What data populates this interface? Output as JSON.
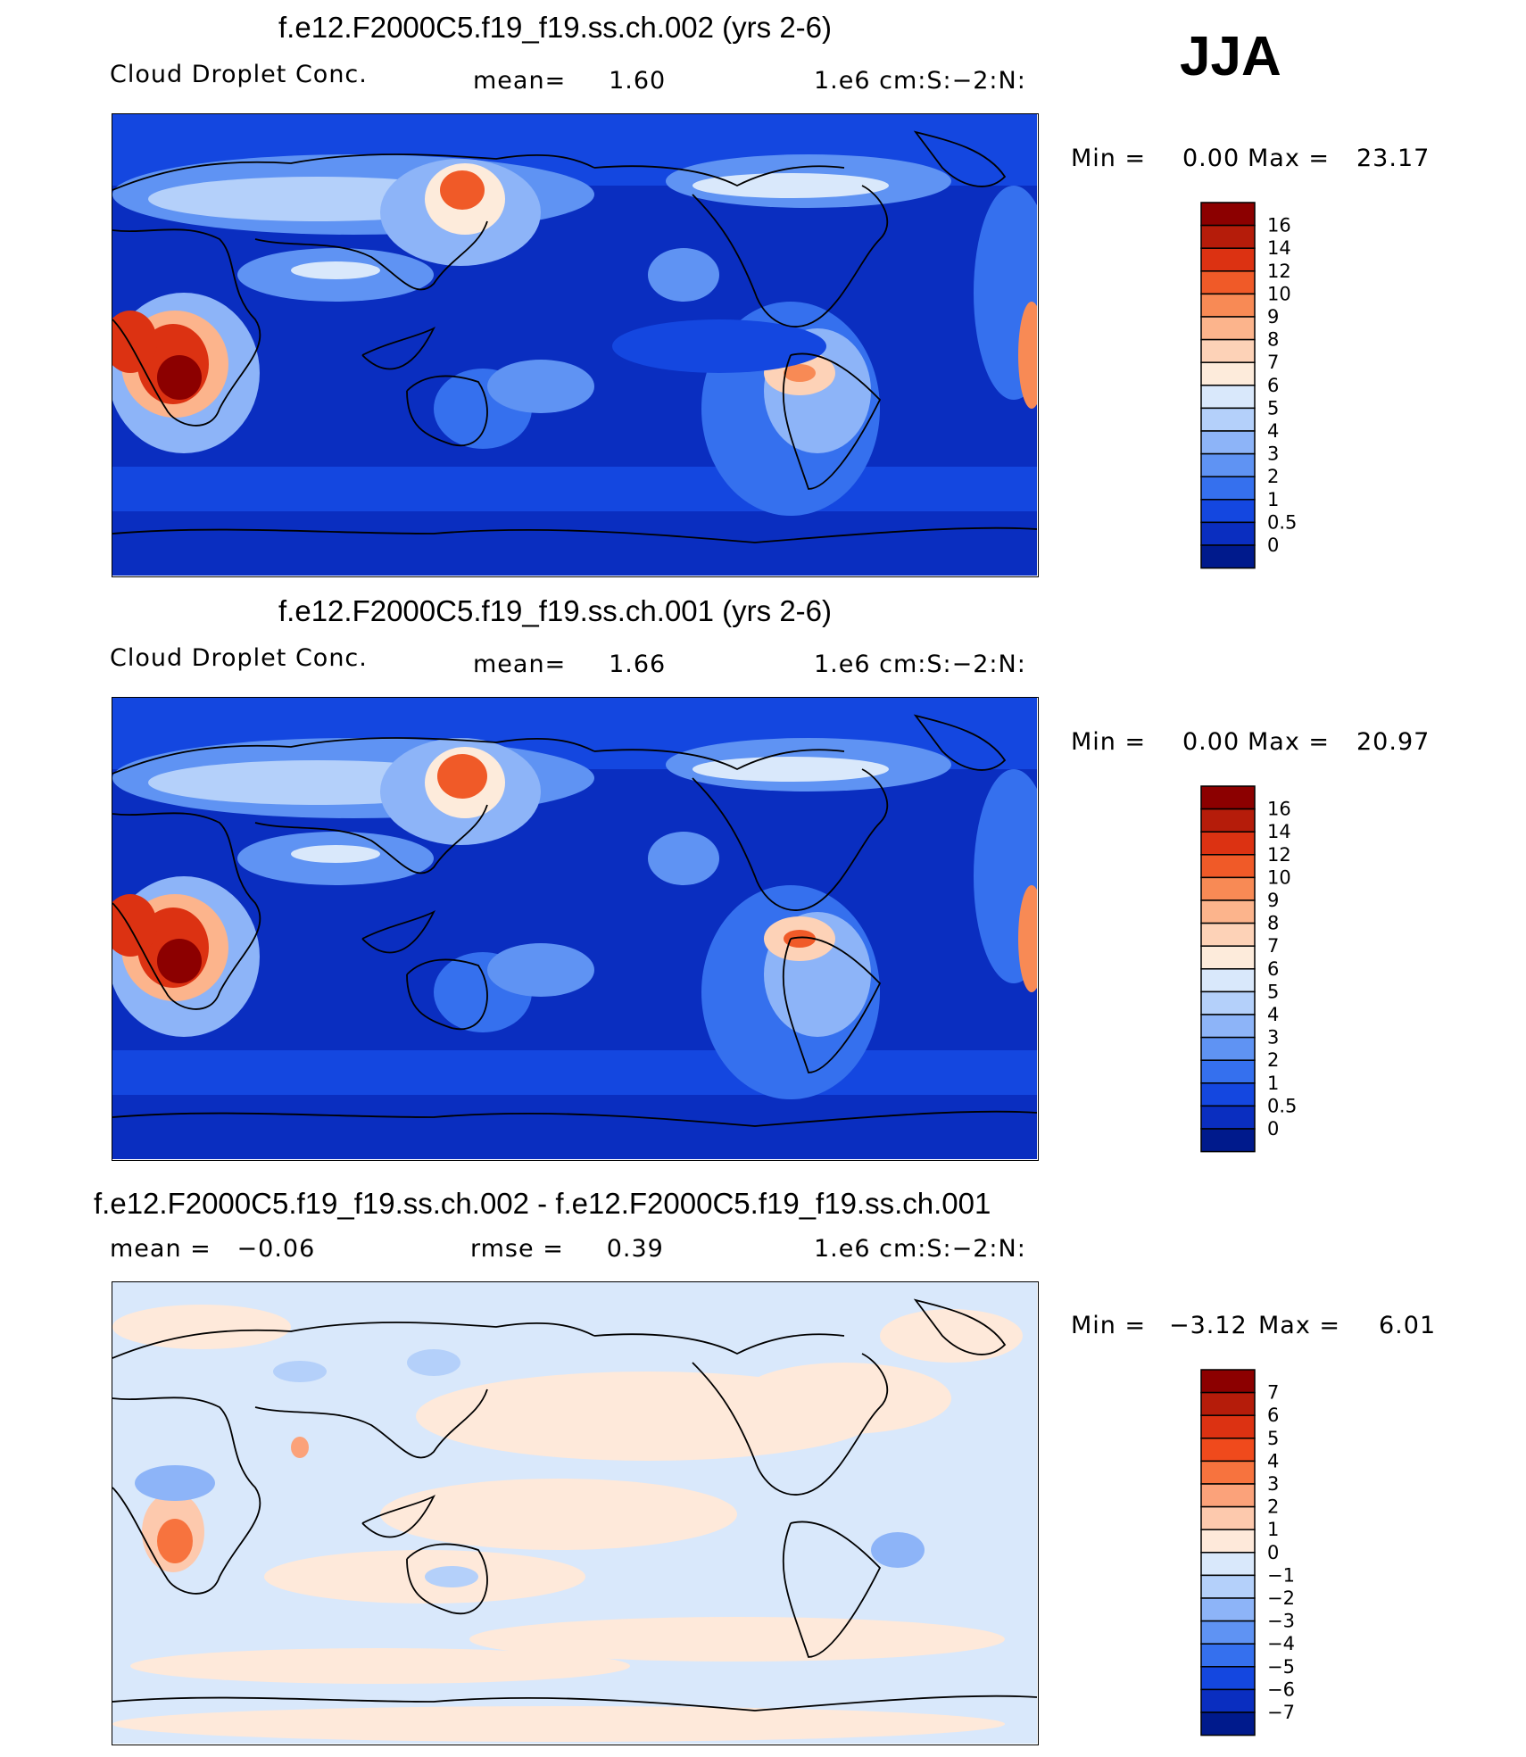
{
  "season": "JJA",
  "panels": [
    {
      "title": "f.e12.F2000C5.f19_f19.ss.ch.002 (yrs 2-6)",
      "variable": "Cloud Droplet Conc.",
      "stat_left": "",
      "stat_mid": "mean=     1.60",
      "units": "1.e6 cm:S:−2:N:",
      "min_label": "Min =",
      "min_value": "0.00",
      "max_label": "Max =",
      "max_value": "23.17",
      "levels": [
        "16",
        "14",
        "12",
        "10",
        "9",
        "8",
        "7",
        "6",
        "5",
        "4",
        "3",
        "2",
        "1",
        "0.5",
        "0"
      ],
      "colors": [
        "#8c0000",
        "#b51c0a",
        "#dc3212",
        "#f05a28",
        "#f88a55",
        "#fcb48c",
        "#fdd2b7",
        "#fdebdb",
        "#d9e8fb",
        "#b4d0fa",
        "#8db4f8",
        "#5f93f3",
        "#3570ee",
        "#1447e0",
        "#0a2ec0",
        "#001a8c"
      ]
    },
    {
      "title": "f.e12.F2000C5.f19_f19.ss.ch.001 (yrs 2-6)",
      "variable": "Cloud Droplet Conc.",
      "stat_left": "",
      "stat_mid": "mean=     1.66",
      "units": "1.e6 cm:S:−2:N:",
      "min_label": "Min =",
      "min_value": "0.00",
      "max_label": "Max =",
      "max_value": "20.97",
      "levels": [
        "16",
        "14",
        "12",
        "10",
        "9",
        "8",
        "7",
        "6",
        "5",
        "4",
        "3",
        "2",
        "1",
        "0.5",
        "0"
      ],
      "colors": [
        "#8c0000",
        "#b51c0a",
        "#dc3212",
        "#f05a28",
        "#f88a55",
        "#fcb48c",
        "#fdd2b7",
        "#fdebdb",
        "#d9e8fb",
        "#b4d0fa",
        "#8db4f8",
        "#5f93f3",
        "#3570ee",
        "#1447e0",
        "#0a2ec0",
        "#001a8c"
      ]
    },
    {
      "title": "f.e12.F2000C5.f19_f19.ss.ch.002 - f.e12.F2000C5.f19_f19.ss.ch.001",
      "variable": "",
      "stat_left": "mean =   −0.06",
      "stat_mid": "rmse =     0.39",
      "units": "1.e6 cm:S:−2:N:",
      "min_label": "Min =",
      "min_value": "−3.12",
      "max_label": "Max =",
      "max_value": "6.01",
      "levels": [
        "7",
        "6",
        "5",
        "4",
        "3",
        "2",
        "1",
        "0",
        "−1",
        "−2",
        "−3",
        "−4",
        "−5",
        "−6",
        "−7"
      ],
      "colors": [
        "#8c0000",
        "#b51c0a",
        "#dc3212",
        "#f04a1c",
        "#f7733e",
        "#fba27a",
        "#fdc9ad",
        "#fee9da",
        "#d9e8fb",
        "#b4d0fa",
        "#8db4f8",
        "#5f93f3",
        "#3570ee",
        "#1447e0",
        "#0a2ec0",
        "#001a8c"
      ]
    }
  ],
  "chart_data": [
    {
      "type": "heatmap",
      "title": "f.e12.F2000C5.f19_f19.ss.ch.002 (yrs 2-6)",
      "variable": "Cloud Droplet Conc.",
      "mean": 1.6,
      "min": 0.0,
      "max": 23.17,
      "contour_levels": [
        0,
        0.5,
        1,
        2,
        3,
        4,
        5,
        6,
        7,
        8,
        9,
        10,
        12,
        14,
        16
      ]
    },
    {
      "type": "heatmap",
      "title": "f.e12.F2000C5.f19_f19.ss.ch.001 (yrs 2-6)",
      "variable": "Cloud Droplet Conc.",
      "mean": 1.66,
      "min": 0.0,
      "max": 20.97,
      "contour_levels": [
        0,
        0.5,
        1,
        2,
        3,
        4,
        5,
        6,
        7,
        8,
        9,
        10,
        12,
        14,
        16
      ]
    },
    {
      "type": "heatmap",
      "title": "f.e12.F2000C5.f19_f19.ss.ch.002 - f.e12.F2000C5.f19_f19.ss.ch.001",
      "mean": -0.06,
      "rmse": 0.39,
      "min": -3.12,
      "max": 6.01,
      "contour_levels": [
        -7,
        -6,
        -5,
        -4,
        -3,
        -2,
        -1,
        0,
        1,
        2,
        3,
        4,
        5,
        6,
        7
      ]
    }
  ]
}
